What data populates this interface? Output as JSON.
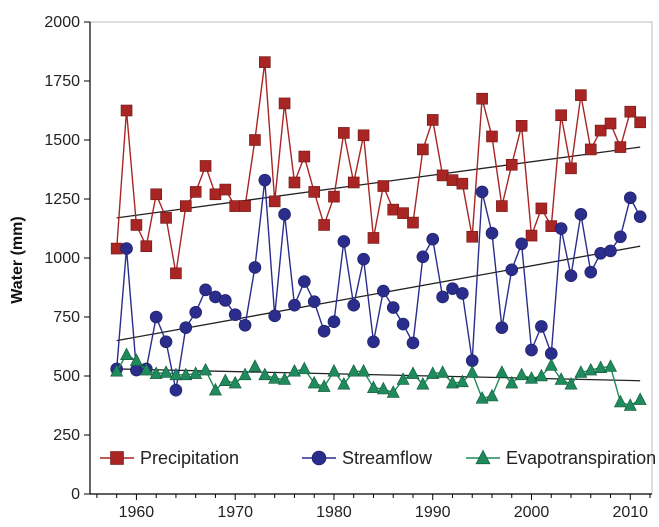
{
  "chart_data": {
    "type": "line",
    "title": "",
    "xlabel": "",
    "ylabel": "Water (mm)",
    "xlim": [
      1955.3,
      2012.2
    ],
    "ylim": [
      0,
      2000
    ],
    "grid": false,
    "legend_placement": "bottom",
    "x_ticks": [
      "1960",
      "1970",
      "1980",
      "1990",
      "2000",
      "2010"
    ],
    "y_ticks": [
      "0",
      "250",
      "500",
      "750",
      "1000",
      "1250",
      "1500",
      "1750",
      "2000"
    ],
    "x": [
      1958,
      1959,
      1960,
      1961,
      1962,
      1963,
      1964,
      1965,
      1966,
      1967,
      1968,
      1969,
      1970,
      1971,
      1972,
      1973,
      1974,
      1975,
      1976,
      1977,
      1978,
      1979,
      1980,
      1981,
      1982,
      1983,
      1984,
      1985,
      1986,
      1987,
      1988,
      1989,
      1990,
      1991,
      1992,
      1993,
      1994,
      1995,
      1996,
      1997,
      1998,
      1999,
      2000,
      2001,
      2002,
      2003,
      2004,
      2005,
      2006,
      2007,
      2008,
      2009,
      2010,
      2011
    ],
    "series": [
      {
        "name": "Precipitation",
        "color": "#a92524",
        "marker": "square",
        "values": [
          1040,
          1625,
          1140,
          1050,
          1270,
          1170,
          935,
          1220,
          1280,
          1390,
          1270,
          1290,
          1220,
          1220,
          1500,
          1830,
          1240,
          1655,
          1320,
          1430,
          1280,
          1140,
          1260,
          1530,
          1320,
          1520,
          1085,
          1305,
          1205,
          1190,
          1150,
          1460,
          1585,
          1350,
          1330,
          1315,
          1090,
          1675,
          1515,
          1220,
          1395,
          1560,
          1095,
          1210,
          1135,
          1605,
          1380,
          1690,
          1460,
          1540,
          1570,
          1470,
          1620,
          1575
        ],
        "trend": [
          1170,
          1470
        ]
      },
      {
        "name": "Streamflow",
        "color": "#2a2d8c",
        "marker": "circle",
        "values": [
          530,
          1040,
          525,
          530,
          750,
          645,
          440,
          705,
          770,
          865,
          835,
          820,
          760,
          715,
          960,
          1330,
          755,
          1185,
          800,
          900,
          815,
          690,
          730,
          1070,
          800,
          995,
          645,
          860,
          790,
          720,
          640,
          1005,
          1080,
          835,
          870,
          850,
          565,
          1280,
          1105,
          705,
          950,
          1060,
          610,
          710,
          595,
          1125,
          925,
          1185,
          940,
          1020,
          1030,
          1090,
          1255,
          1175
        ],
        "trend": [
          650,
          1050
        ]
      },
      {
        "name": "Evapotranspiration",
        "color": "#1f8a5c",
        "marker": "triangle",
        "values": [
          520,
          590,
          565,
          525,
          510,
          515,
          505,
          505,
          510,
          525,
          440,
          480,
          470,
          505,
          540,
          505,
          490,
          485,
          520,
          530,
          470,
          455,
          520,
          465,
          520,
          520,
          450,
          445,
          430,
          485,
          510,
          465,
          510,
          515,
          470,
          475,
          515,
          405,
          415,
          515,
          470,
          505,
          490,
          500,
          545,
          485,
          465,
          515,
          525,
          535,
          540,
          390,
          375,
          400
        ],
        "trend": [
          530,
          480
        ]
      }
    ]
  }
}
